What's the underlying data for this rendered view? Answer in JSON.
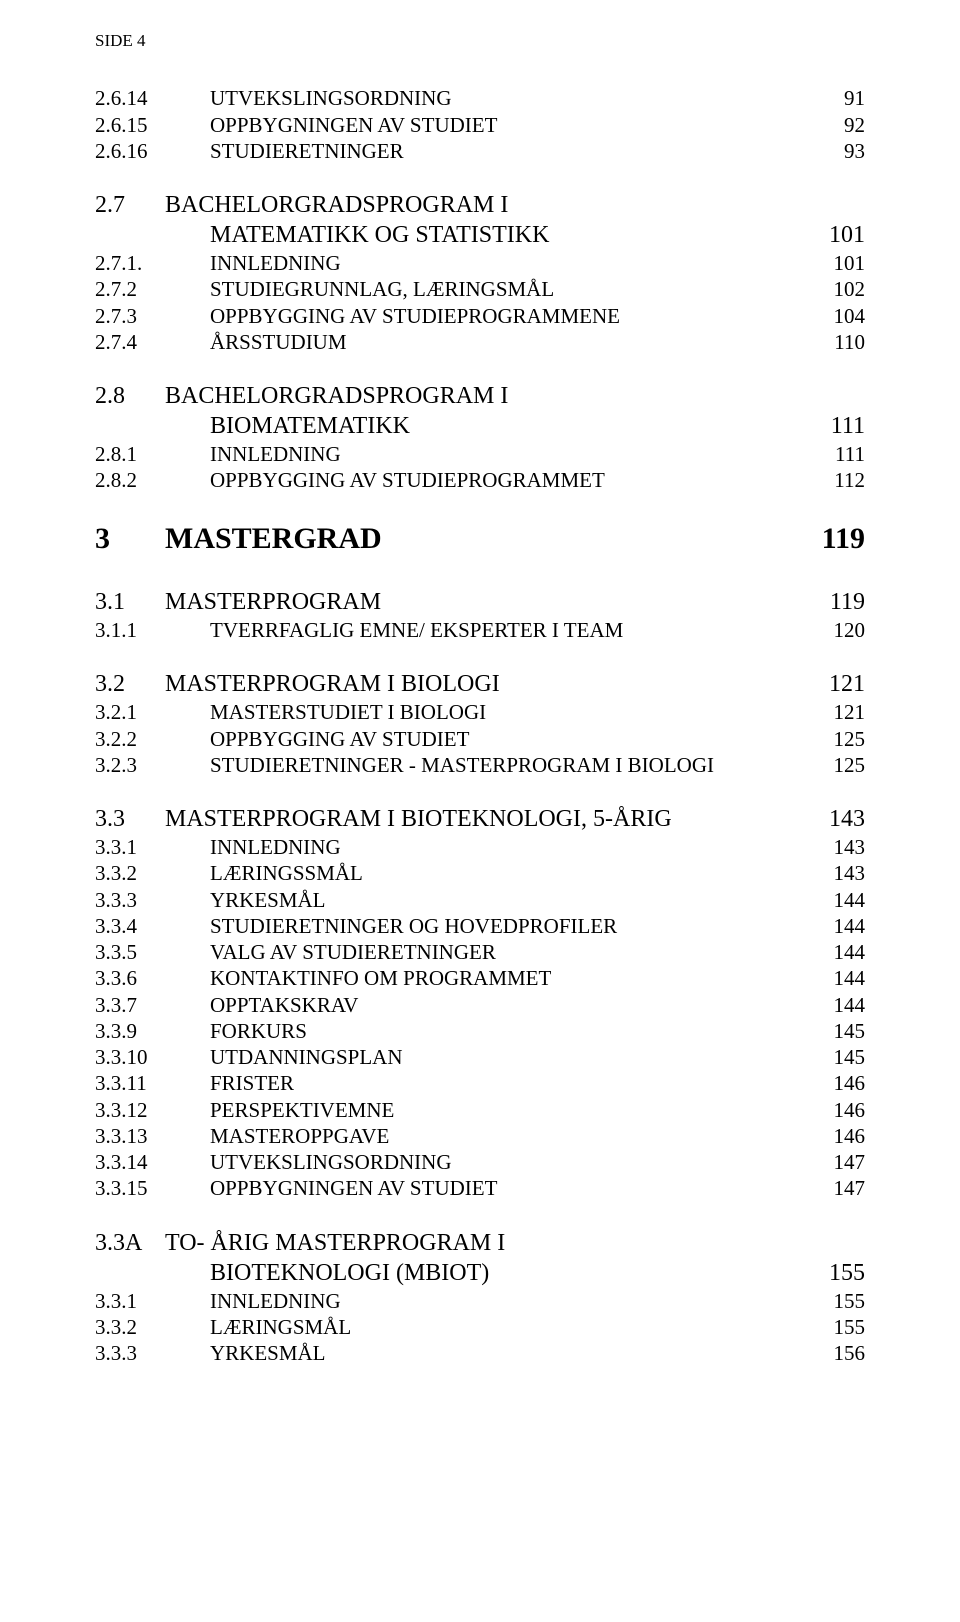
{
  "header": "SIDE 4",
  "sections": [
    {
      "type": "block",
      "rows": [
        {
          "level": 3,
          "num": "2.6.14",
          "title": "UTVEKSLINGSORDNING",
          "page": "91"
        },
        {
          "level": 3,
          "num": "2.6.15",
          "title": "OPPBYGNINGEN AV STUDIET",
          "page": "92"
        },
        {
          "level": 3,
          "num": "2.6.16",
          "title": "STUDIERETNINGER",
          "page": "93"
        }
      ]
    },
    {
      "type": "block",
      "rows": [
        {
          "level": 2,
          "num": "2.7",
          "title": "BACHELORGRADSPROGRAM I",
          "page": ""
        },
        {
          "level": "cont",
          "num": "",
          "title": "MATEMATIKK OG STATISTIKK",
          "page": "101"
        },
        {
          "level": 3,
          "num": "2.7.1.",
          "title": "INNLEDNING",
          "page": "101"
        },
        {
          "level": 3,
          "num": "2.7.2",
          "title": "STUDIEGRUNNLAG, LÆRINGSMÅL",
          "page": "102"
        },
        {
          "level": 3,
          "num": "2.7.3",
          "title": "OPPBYGGING AV STUDIEPROGRAMMENE",
          "page": "104"
        },
        {
          "level": 3,
          "num": "2.7.4",
          "title": "ÅRSSTUDIUM",
          "page": "110"
        }
      ]
    },
    {
      "type": "block",
      "rows": [
        {
          "level": 2,
          "num": "2.8",
          "title": "BACHELORGRADSPROGRAM I",
          "page": ""
        },
        {
          "level": "cont",
          "num": "",
          "title": "BIOMATEMATIKK",
          "page": "111"
        },
        {
          "level": 3,
          "num": "2.8.1",
          "title": "INNLEDNING",
          "page": "111"
        },
        {
          "level": 3,
          "num": "2.8.2",
          "title": "OPPBYGGING AV STUDIEPROGRAMMET",
          "page": "112"
        }
      ]
    },
    {
      "type": "h1",
      "rows": [
        {
          "level": 1,
          "num": "3",
          "title": "MASTERGRAD",
          "page": "119"
        }
      ]
    },
    {
      "type": "block",
      "rows": [
        {
          "level": 2,
          "num": "3.1",
          "title": "MASTERPROGRAM",
          "page": "119"
        },
        {
          "level": 3,
          "num": "3.1.1",
          "title": "TVERRFAGLIG EMNE/ EKSPERTER I TEAM",
          "page": "120"
        }
      ]
    },
    {
      "type": "block",
      "rows": [
        {
          "level": 2,
          "num": "3.2",
          "title": "MASTERPROGRAM I BIOLOGI",
          "page": "121"
        },
        {
          "level": 3,
          "num": "3.2.1",
          "title": "MASTERSTUDIET I BIOLOGI",
          "page": "121"
        },
        {
          "level": 3,
          "num": "3.2.2",
          "title": "OPPBYGGING AV STUDIET",
          "page": "125"
        },
        {
          "level": 3,
          "num": "3.2.3",
          "title": "STUDIERETNINGER - MASTERPROGRAM I BIOLOGI",
          "page": "125"
        }
      ]
    },
    {
      "type": "block",
      "rows": [
        {
          "level": 2,
          "num": "3.3",
          "title": "MASTERPROGRAM I BIOTEKNOLOGI, 5-ÅRIG",
          "page": "143"
        },
        {
          "level": 3,
          "num": "3.3.1",
          "title": "INNLEDNING",
          "page": "143"
        },
        {
          "level": 3,
          "num": "3.3.2",
          "title": "LÆRINGSSMÅL",
          "page": "143"
        },
        {
          "level": 3,
          "num": "3.3.3",
          "title": "YRKESMÅL",
          "page": "144"
        },
        {
          "level": 3,
          "num": "3.3.4",
          "title": "STUDIERETNINGER OG HOVEDPROFILER",
          "page": "144"
        },
        {
          "level": 3,
          "num": "3.3.5",
          "title": "VALG AV STUDIERETNINGER",
          "page": "144"
        },
        {
          "level": 3,
          "num": "3.3.6",
          "title": "KONTAKTINFO OM PROGRAMMET",
          "page": "144"
        },
        {
          "level": 3,
          "num": "3.3.7",
          "title": "OPPTAKSKRAV",
          "page": "144"
        },
        {
          "level": 3,
          "num": "3.3.9",
          "title": "FORKURS",
          "page": "145"
        },
        {
          "level": 3,
          "num": "3.3.10",
          "title": "UTDANNINGSPLAN",
          "page": "145"
        },
        {
          "level": 3,
          "num": "3.3.11",
          "title": "FRISTER",
          "page": "146"
        },
        {
          "level": 3,
          "num": "3.3.12",
          "title": "PERSPEKTIVEMNE",
          "page": "146"
        },
        {
          "level": 3,
          "num": "3.3.13",
          "title": "MASTEROPPGAVE",
          "page": "146"
        },
        {
          "level": 3,
          "num": "3.3.14",
          "title": "UTVEKSLINGSORDNING",
          "page": "147"
        },
        {
          "level": 3,
          "num": "3.3.15",
          "title": "OPPBYGNINGEN AV STUDIET",
          "page": "147"
        }
      ]
    },
    {
      "type": "block",
      "rows": [
        {
          "level": 2,
          "num": "3.3A",
          "title": "TO- ÅRIG MASTERPROGRAM I",
          "page": ""
        },
        {
          "level": "cont",
          "num": "",
          "title": "BIOTEKNOLOGI (MBIOT)",
          "page": "155"
        },
        {
          "level": 3,
          "num": "3.3.1",
          "title": "INNLEDNING",
          "page": "155"
        },
        {
          "level": 3,
          "num": "3.3.2",
          "title": "LÆRINGSMÅL",
          "page": "155"
        },
        {
          "level": 3,
          "num": "3.3.3",
          "title": "YRKESMÅL",
          "page": "156"
        }
      ]
    }
  ]
}
